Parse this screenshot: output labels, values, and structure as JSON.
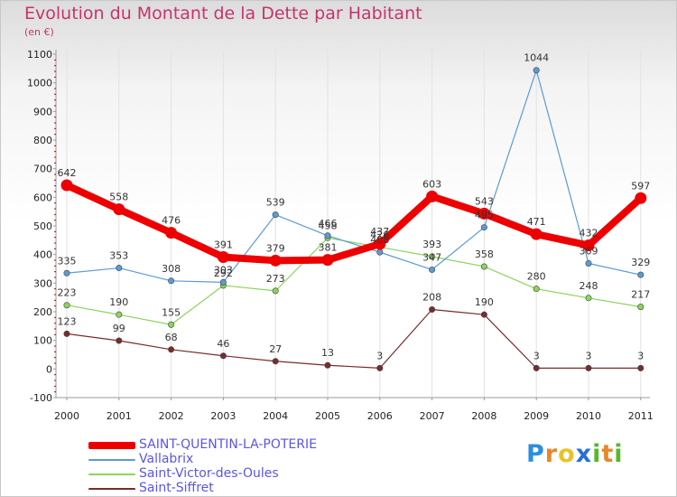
{
  "title": "Evolution du Montant de la Dette par Habitant",
  "subtitle": "(en €)",
  "logo": {
    "letters": [
      "P",
      "r",
      "o",
      "x",
      "i",
      "t",
      "i"
    ],
    "colors": [
      "#2d8ee0",
      "#e8872a",
      "#e8c22a",
      "#2a6fd8",
      "#58b82a",
      "#e8872a",
      "#58b82a"
    ]
  },
  "chart_data": {
    "type": "line",
    "title": "Evolution du Montant de la Dette par Habitant",
    "ylabel": "(en €)",
    "xlabel": "",
    "x": [
      "2000",
      "2001",
      "2002",
      "2003",
      "2004",
      "2005",
      "2006",
      "2007",
      "2008",
      "2009",
      "2010",
      "2011"
    ],
    "ylim": [
      -100,
      1100
    ],
    "yticks": [
      "-100",
      "0",
      "100",
      "200",
      "300",
      "400",
      "500",
      "600",
      "700",
      "800",
      "900",
      "1000",
      "1100"
    ],
    "grid": "vertical",
    "legend": "bottom-left",
    "series": [
      {
        "name": "SAINT-QUENTIN-LA-POTERIE",
        "color": "#ee0000",
        "values": [
          642,
          558,
          476,
          391,
          379,
          381,
          437,
          603,
          543,
          471,
          432,
          597
        ],
        "labels": [
          "642",
          "558",
          "476",
          "391",
          "379",
          "381",
          "437",
          "603",
          "543",
          "471",
          "432",
          "597"
        ]
      },
      {
        "name": "Vallabrix",
        "color": "#5b9bd5",
        "values": [
          335,
          353,
          308,
          303,
          539,
          466,
          408,
          347,
          495,
          1044,
          369,
          329
        ],
        "labels": [
          "335",
          "353",
          "308",
          "303",
          "539",
          "466",
          "408",
          "347",
          "495",
          "1044",
          "369",
          "329"
        ]
      },
      {
        "name": "Saint-Victor-des-Oules",
        "color": "#8ad55a",
        "values": [
          223,
          190,
          155,
          292,
          273,
          458,
          426,
          393,
          358,
          280,
          248,
          217
        ],
        "labels": [
          "223",
          "190",
          "155",
          "292",
          "273",
          "458",
          "426",
          "393",
          "358",
          "280",
          "248",
          "217"
        ]
      },
      {
        "name": "Saint-Siffret",
        "color": "#7a2b2b",
        "values": [
          123,
          99,
          68,
          46,
          27,
          13,
          3,
          208,
          190,
          3,
          3,
          3
        ],
        "labels": [
          "123",
          "99",
          "68",
          "46",
          "27",
          "13",
          "3",
          "208",
          "190",
          "3",
          "3",
          "3"
        ]
      }
    ]
  }
}
